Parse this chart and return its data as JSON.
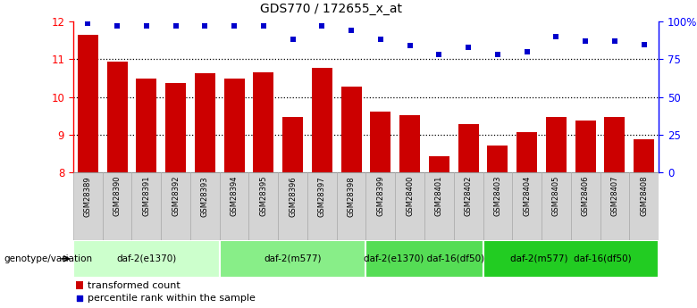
{
  "title": "GDS770 / 172655_x_at",
  "samples": [
    "GSM28389",
    "GSM28390",
    "GSM28391",
    "GSM28392",
    "GSM28393",
    "GSM28394",
    "GSM28395",
    "GSM28396",
    "GSM28397",
    "GSM28398",
    "GSM28399",
    "GSM28400",
    "GSM28401",
    "GSM28402",
    "GSM28403",
    "GSM28404",
    "GSM28405",
    "GSM28406",
    "GSM28407",
    "GSM28408"
  ],
  "bar_values": [
    11.65,
    10.95,
    10.48,
    10.38,
    10.62,
    10.48,
    10.65,
    9.48,
    10.78,
    10.28,
    9.62,
    9.52,
    8.42,
    9.28,
    8.72,
    9.08,
    9.48,
    9.38,
    9.48,
    8.88
  ],
  "percentile_values": [
    99,
    97,
    97,
    97,
    97,
    97,
    97,
    88,
    97,
    94,
    88,
    84,
    78,
    83,
    78,
    80,
    90,
    87,
    87,
    85
  ],
  "ylim_left": [
    8,
    12
  ],
  "ylim_right": [
    0,
    100
  ],
  "yticks_left": [
    8,
    9,
    10,
    11,
    12
  ],
  "yticks_right": [
    0,
    25,
    50,
    75,
    100
  ],
  "ytick_labels_right": [
    "0",
    "25",
    "50",
    "75",
    "100%"
  ],
  "bar_color": "#cc0000",
  "dot_color": "#0000cc",
  "groups": [
    {
      "label": "daf-2(e1370)",
      "start": 0,
      "end": 4,
      "color": "#ccffcc"
    },
    {
      "label": "daf-2(m577)",
      "start": 5,
      "end": 9,
      "color": "#88ee88"
    },
    {
      "label": "daf-2(e1370) daf-16(df50)",
      "start": 10,
      "end": 13,
      "color": "#55dd55"
    },
    {
      "label": "daf-2(m577)  daf-16(df50)",
      "start": 14,
      "end": 19,
      "color": "#22cc22"
    }
  ],
  "legend_bar_label": "transformed count",
  "legend_dot_label": "percentile rank within the sample",
  "genotype_label": "genotype/variation",
  "grid_lines": [
    9,
    10,
    11
  ],
  "group_dividers": [
    4.5,
    9.5,
    13.5
  ],
  "tick_bg_color": "#d4d4d4",
  "tick_border_color": "#aaaaaa"
}
